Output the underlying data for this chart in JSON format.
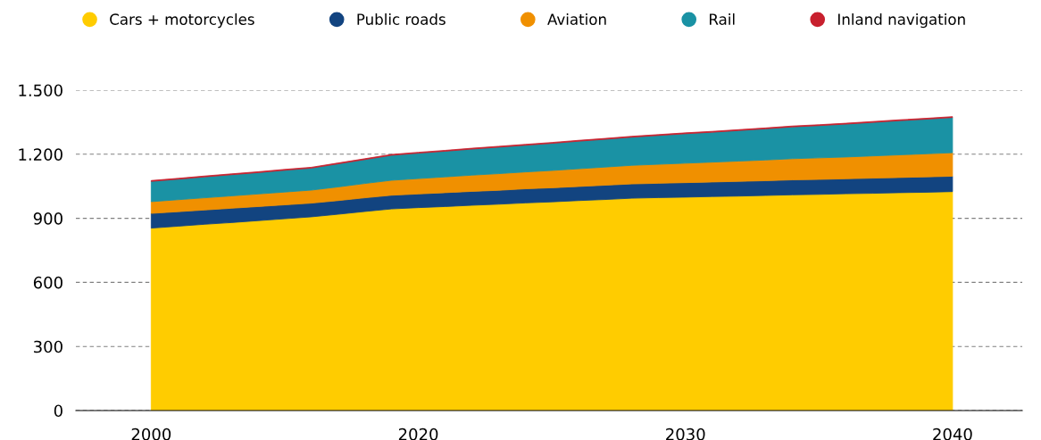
{
  "chart_data": {
    "type": "area",
    "stacked": true,
    "categories": [
      "2000",
      null,
      null,
      null,
      null,
      null,
      null,
      null,
      null,
      null,
      "2020",
      null,
      null,
      null,
      null,
      null,
      null,
      null,
      null,
      null,
      "2030",
      null,
      null,
      null,
      null,
      null,
      null,
      null,
      null,
      null,
      "2040"
    ],
    "ylim": [
      0,
      1500
    ],
    "yticks": [
      {
        "value": 0,
        "label": "0"
      },
      {
        "value": 300,
        "label": "300"
      },
      {
        "value": 600,
        "label": "600"
      },
      {
        "value": 900,
        "label": "900"
      },
      {
        "value": 1200,
        "label": "1.200"
      },
      {
        "value": 1500,
        "label": "1.500"
      }
    ],
    "grid": "y",
    "legend": "top",
    "series": [
      {
        "name": "Cars + motorcycles",
        "color": "#ffcc00",
        "values": [
          854,
          863,
          872,
          880,
          889,
          898,
          907,
          919,
          932,
          944,
          950,
          955,
          961,
          966,
          972,
          977,
          983,
          988,
          994,
          997,
          999,
          1002,
          1004,
          1007,
          1010,
          1012,
          1015,
          1017,
          1020,
          1022,
          1025
        ]
      },
      {
        "name": "Public roads",
        "color": "#124480",
        "values": [
          69,
          68,
          67,
          67,
          66,
          65,
          64,
          64,
          64,
          64,
          64,
          65,
          65,
          65,
          66,
          66,
          66,
          67,
          67,
          67,
          68,
          68,
          69,
          69,
          70,
          70,
          70,
          71,
          71,
          72,
          72
        ]
      },
      {
        "name": "Aviation",
        "color": "#f09000",
        "values": [
          55,
          56,
          57,
          58,
          59,
          60,
          61,
          64,
          67,
          70,
          72,
          74,
          76,
          78,
          79,
          81,
          83,
          85,
          87,
          89,
          91,
          93,
          95,
          97,
          99,
          101,
          102,
          104,
          106,
          108,
          110
        ]
      },
      {
        "name": "Rail",
        "color": "#1a92a4",
        "values": [
          95,
          96,
          98,
          99,
          100,
          102,
          103,
          108,
          112,
          117,
          119,
          120,
          122,
          124,
          125,
          127,
          129,
          130,
          132,
          135,
          138,
          140,
          143,
          146,
          149,
          151,
          154,
          157,
          160,
          162,
          165
        ]
      },
      {
        "name": "Inland navigation",
        "color": "#c8202e",
        "values": [
          4,
          4,
          4,
          4,
          4,
          4,
          4,
          4,
          4,
          4,
          4,
          4,
          4,
          4,
          4,
          4,
          4,
          4,
          4,
          4,
          4,
          4,
          4,
          4,
          4,
          4,
          4,
          4,
          4,
          4,
          4
        ]
      }
    ]
  }
}
